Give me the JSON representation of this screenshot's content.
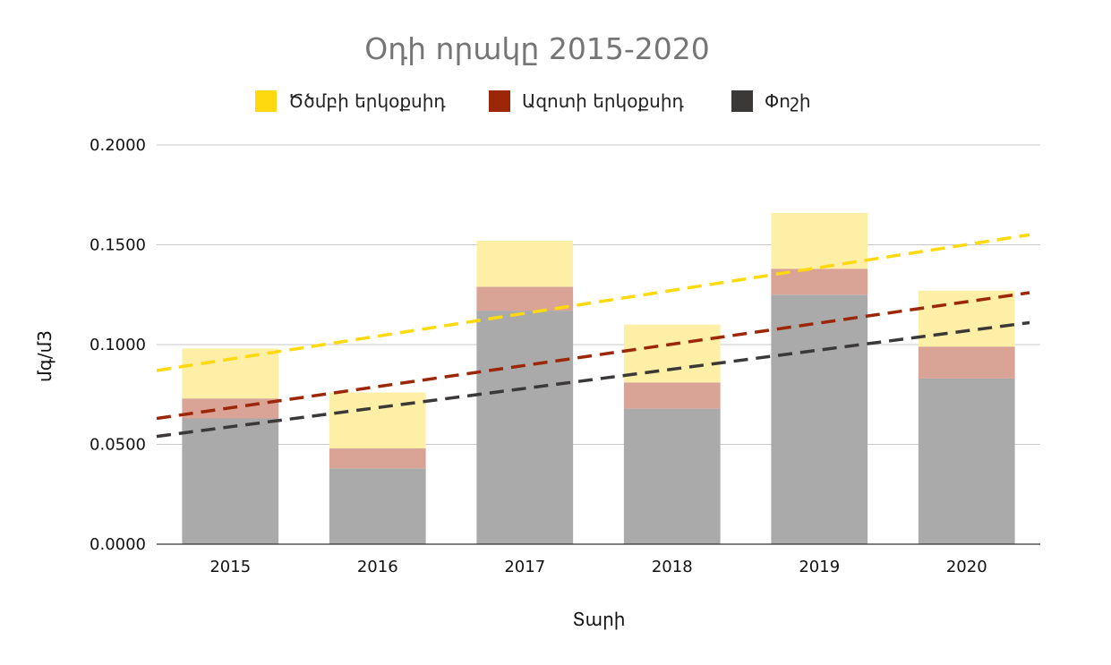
{
  "chart_data": {
    "type": "bar",
    "stacked": true,
    "title": "Օդի որակը 2015-2020",
    "xlabel": "Տարի",
    "ylabel": "մգ/մ3",
    "categories": [
      "2015",
      "2016",
      "2017",
      "2018",
      "2019",
      "2020"
    ],
    "ylim": [
      0,
      0.2
    ],
    "yticks": [
      "0.0000",
      "0.0500",
      "0.1000",
      "0.1500",
      "0.2000"
    ],
    "grid": true,
    "legend_position": "top",
    "series": [
      {
        "name": "Փոշի",
        "color": "#aaaaaa",
        "legend_color": "#3b3838",
        "trend_color": "#3b3838",
        "values": [
          0.063,
          0.038,
          0.117,
          0.068,
          0.125,
          0.083
        ]
      },
      {
        "name": "Ազոտի երկօքսիդ",
        "color": "#d9a396",
        "legend_color": "#9c2708",
        "trend_color": "#9c2708",
        "values": [
          0.01,
          0.01,
          0.012,
          0.013,
          0.013,
          0.016
        ]
      },
      {
        "name": "Ծծմբի երկօքսիդ",
        "color": "#fdf0a6",
        "legend_color": "#ffd90f",
        "trend_color": "#ffd90f",
        "values": [
          0.025,
          0.028,
          0.023,
          0.029,
          0.028,
          0.028
        ]
      }
    ],
    "trendlines": {
      "style": "dashed linear",
      "Ծծմբի երկօքսիդ": [
        0.087,
        0.155
      ],
      "Ազոտի երկօքսիդ": [
        0.063,
        0.126
      ],
      "Փոշի": [
        0.054,
        0.111
      ]
    },
    "legend_order": [
      "Ծծմբի երկօքսիդ",
      "Ազոտի երկօքսիդ",
      "Փոշի"
    ]
  }
}
